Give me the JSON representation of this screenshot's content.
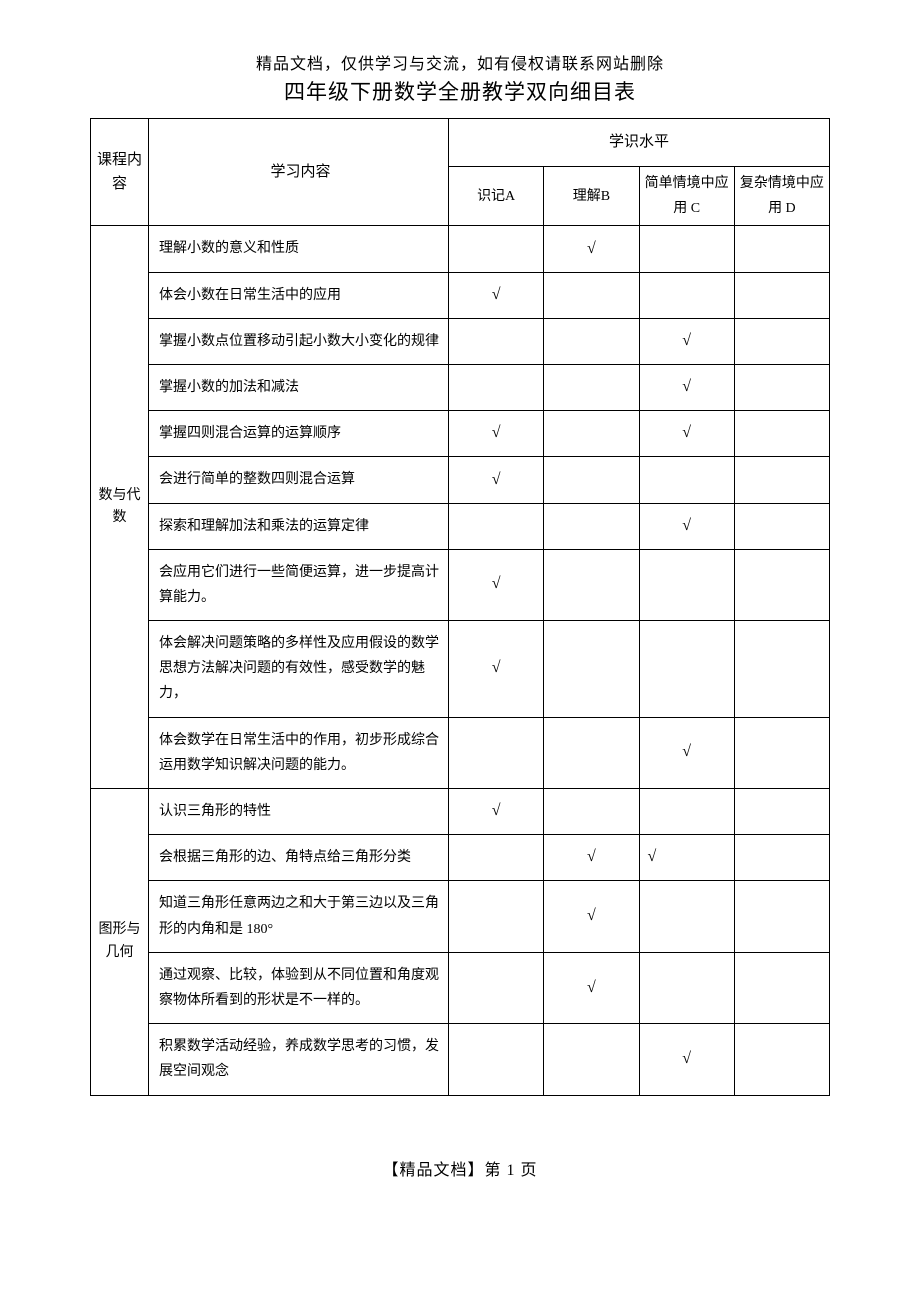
{
  "header_note": "精品文档，仅供学习与交流，如有侵权请联系网站删除",
  "title": "四年级下册数学全册教学双向细目表",
  "headers": {
    "category": "课程内容",
    "content": "学习内容",
    "level_group": "学识水平",
    "level_a": "识记A",
    "level_b": "理解B",
    "level_c": "简单情境中应用 C",
    "level_d": "复杂情境中应用 D"
  },
  "categories": {
    "math_algebra": "数与代数",
    "shape_geometry": "图形与几何"
  },
  "rows": [
    {
      "text": "理解小数的意义和性质",
      "a": "",
      "b": "√",
      "c": "",
      "d": ""
    },
    {
      "text": "体会小数在日常生活中的应用",
      "a": "√",
      "b": "",
      "c": "",
      "d": ""
    },
    {
      "text": "掌握小数点位置移动引起小数大小变化的规律",
      "a": "",
      "b": "",
      "c": "√",
      "d": ""
    },
    {
      "text": "掌握小数的加法和减法",
      "a": "",
      "b": "",
      "c": "√",
      "d": ""
    },
    {
      "text": "掌握四则混合运算的运算顺序",
      "a": "√",
      "b": "",
      "c": "√",
      "d": ""
    },
    {
      "text": "会进行简单的整数四则混合运算",
      "a": "√",
      "b": "",
      "c": "",
      "d": ""
    },
    {
      "text": "探索和理解加法和乘法的运算定律",
      "a": "",
      "b": "",
      "c": "√",
      "d": ""
    },
    {
      "text": "会应用它们进行一些简便运算，进一步提高计算能力。",
      "a": "√",
      "b": "",
      "c": "",
      "d": ""
    },
    {
      "text": "体会解决问题策略的多样性及应用假设的数学思想方法解决问题的有效性，感受数学的魅力，",
      "a": "√",
      "b": "",
      "c": "",
      "d": ""
    },
    {
      "text": "体会数学在日常生活中的作用，初步形成综合运用数学知识解决问题的能力。",
      "a": "",
      "b": "",
      "c": "√",
      "d": ""
    },
    {
      "text": "认识三角形的特性",
      "a": "√",
      "b": "",
      "c": "",
      "d": ""
    },
    {
      "text": "会根据三角形的边、角特点给三角形分类",
      "a": "",
      "b": "√",
      "c": "√",
      "d": ""
    },
    {
      "text": "知道三角形任意两边之和大于第三边以及三角形的内角和是 180°",
      "a": "",
      "b": "√",
      "c": "",
      "d": ""
    },
    {
      "text": "通过观察、比较，体验到从不同位置和角度观察物体所看到的形状是不一样的。",
      "a": "",
      "b": "√",
      "c": "",
      "d": ""
    },
    {
      "text": "积累数学活动经验，养成数学思考的习惯，发展空间观念",
      "a": "",
      "b": "",
      "c": "√",
      "d": ""
    }
  ],
  "footer": "【精品文档】第 1 页"
}
